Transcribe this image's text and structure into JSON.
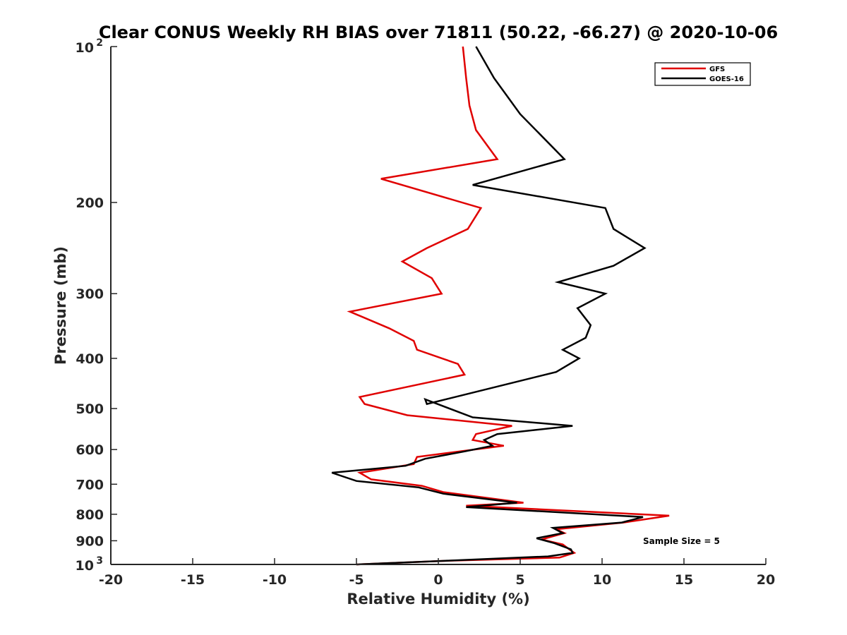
{
  "chart_data": {
    "type": "line",
    "title": "Clear CONUS Weekly RH BIAS over 71811 (50.22, -66.27) @ 2020-10-06",
    "xlabel": "Relative Humidity (%)",
    "ylabel": "Pressure (mb)",
    "xlim": [
      -20,
      20
    ],
    "ylim": [
      100,
      1000
    ],
    "yscale": "log",
    "y_reversed": true,
    "grid": false,
    "legend_position": "top-right",
    "x_ticks": [
      -20,
      -15,
      -10,
      -5,
      0,
      5,
      10,
      15,
      20
    ],
    "x_tick_labels": [
      "-20",
      "-15",
      "-10",
      "-5",
      "0",
      "5",
      "10",
      "15",
      "20"
    ],
    "y_ticks": [
      200,
      300,
      400,
      500,
      600,
      700,
      800,
      900
    ],
    "y_tick_labels": [
      "200",
      "300",
      "400",
      "500",
      "600",
      "700",
      "800",
      "900"
    ],
    "y_decade_labels": [
      {
        "base": "10",
        "exp": "2",
        "value": 100
      },
      {
        "base": "10",
        "exp": "3",
        "value": 1000
      }
    ],
    "series": [
      {
        "name": "GFS",
        "color": "#e00000",
        "points": [
          [
            1.5,
            100
          ],
          [
            1.7,
            115
          ],
          [
            1.9,
            130
          ],
          [
            2.3,
            145
          ],
          [
            3.6,
            165
          ],
          [
            -3.5,
            180
          ],
          [
            2.6,
            205
          ],
          [
            1.8,
            225
          ],
          [
            -0.7,
            245
          ],
          [
            -2.2,
            260
          ],
          [
            -0.4,
            280
          ],
          [
            0.2,
            300
          ],
          [
            -5.4,
            325
          ],
          [
            -3.0,
            350
          ],
          [
            -1.5,
            370
          ],
          [
            -1.3,
            385
          ],
          [
            1.2,
            410
          ],
          [
            1.6,
            430
          ],
          [
            -4.8,
            475
          ],
          [
            -4.5,
            490
          ],
          [
            -1.9,
            515
          ],
          [
            4.5,
            540
          ],
          [
            2.3,
            560
          ],
          [
            2.1,
            575
          ],
          [
            4.0,
            590
          ],
          [
            -1.3,
            620
          ],
          [
            -1.5,
            640
          ],
          [
            -4.8,
            665
          ],
          [
            -4.1,
            685
          ],
          [
            -1.0,
            705
          ],
          [
            0.3,
            725
          ],
          [
            5.2,
            760
          ],
          [
            1.7,
            770
          ],
          [
            14.1,
            805
          ],
          [
            11.3,
            830
          ],
          [
            7.2,
            855
          ],
          [
            7.7,
            870
          ],
          [
            6.3,
            895
          ],
          [
            7.6,
            915
          ],
          [
            8.1,
            940
          ],
          [
            8.3,
            950
          ],
          [
            7.4,
            970
          ],
          [
            0.0,
            985
          ],
          [
            -5.0,
            1000
          ]
        ]
      },
      {
        "name": "GOES-16",
        "color": "#000000",
        "points": [
          [
            2.3,
            100
          ],
          [
            3.4,
            115
          ],
          [
            5.0,
            135
          ],
          [
            7.7,
            165
          ],
          [
            2.1,
            185
          ],
          [
            10.2,
            205
          ],
          [
            10.7,
            225
          ],
          [
            12.6,
            245
          ],
          [
            10.7,
            265
          ],
          [
            7.3,
            285
          ],
          [
            10.2,
            300
          ],
          [
            8.5,
            320
          ],
          [
            9.3,
            345
          ],
          [
            9.0,
            365
          ],
          [
            7.6,
            385
          ],
          [
            8.6,
            400
          ],
          [
            7.2,
            425
          ],
          [
            -0.7,
            490
          ],
          [
            -0.8,
            480
          ],
          [
            2.1,
            520
          ],
          [
            8.2,
            540
          ],
          [
            3.6,
            560
          ],
          [
            2.8,
            575
          ],
          [
            3.3,
            590
          ],
          [
            1.6,
            605
          ],
          [
            -0.8,
            625
          ],
          [
            -2.0,
            645
          ],
          [
            -6.5,
            665
          ],
          [
            -5.0,
            690
          ],
          [
            -1.2,
            710
          ],
          [
            0.3,
            730
          ],
          [
            4.8,
            760
          ],
          [
            1.7,
            775
          ],
          [
            12.5,
            810
          ],
          [
            11.2,
            830
          ],
          [
            7.0,
            850
          ],
          [
            7.6,
            870
          ],
          [
            6.0,
            890
          ],
          [
            7.1,
            910
          ],
          [
            8.1,
            935
          ],
          [
            8.2,
            950
          ],
          [
            6.7,
            965
          ],
          [
            0.0,
            985
          ],
          [
            -5.0,
            1000
          ]
        ]
      }
    ],
    "annotation": "Sample Size = 5"
  }
}
